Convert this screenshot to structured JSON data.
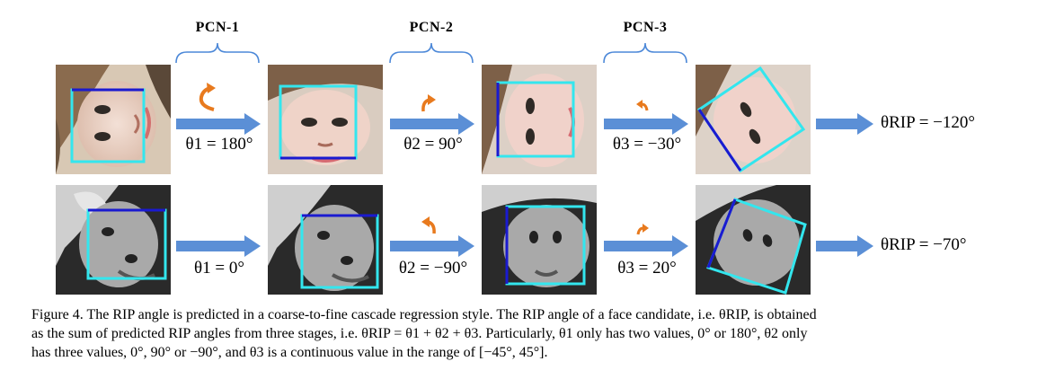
{
  "stages": [
    {
      "label": "PCN-1"
    },
    {
      "label": "PCN-2"
    },
    {
      "label": "PCN-3"
    }
  ],
  "rows": [
    {
      "subject": "woman-face",
      "theta_1": "θ1 = 180°",
      "theta_2": "θ2 = 90°",
      "theta_3": "θ3 = −30°",
      "theta_rip": "θRIP = −120°"
    },
    {
      "subject": "einstein-face",
      "theta_1": "θ1 = 0°",
      "theta_2": "θ2 = −90°",
      "theta_3": "θ3 = 20°",
      "theta_rip": "θRIP = −70°"
    }
  ],
  "colors": {
    "arrow": "#5b8fd6",
    "rotation_icon": "#e87a1e",
    "box_cyan": "#33e6ee",
    "box_blue": "#1a1ad0"
  },
  "caption": {
    "line1": "Figure 4. The RIP angle is predicted in a coarse-to-fine cascade regression style. The RIP angle of a face candidate, i.e. θRIP, is obtained",
    "line2": "as the sum of predicted RIP angles from three stages, i.e. θRIP = θ1 + θ2 + θ3. Particularly, θ1 only has two values, 0° or 180°, θ2 only",
    "line3": "has three values, 0°, 90° or −90°, and θ3 is a continuous value in the range of [−45°, 45°]."
  }
}
